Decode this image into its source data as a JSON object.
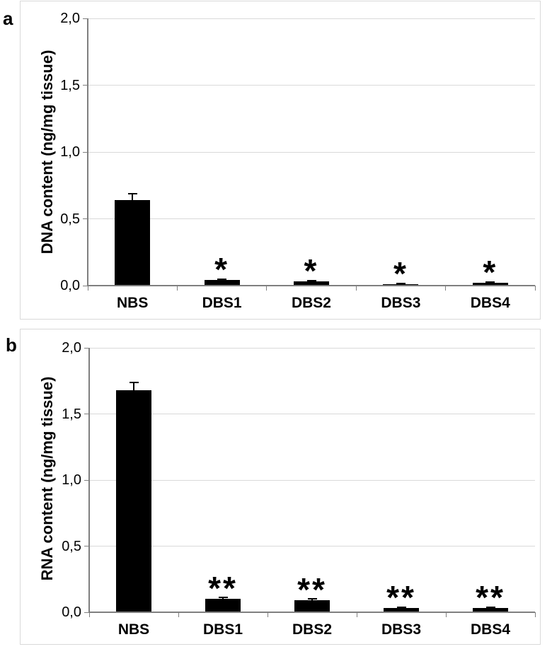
{
  "figure_type": "two-panel bar chart figure",
  "style": {
    "bar_color": "#000000",
    "grid_color": "#d9d9d9",
    "axis_color": "#7f7f7f",
    "border_color": "#d9d9d9",
    "text_color": "#000000",
    "background": "#ffffff"
  },
  "chart_data": [
    {
      "type": "bar",
      "panel_label": "a",
      "title": "",
      "xlabel": "",
      "ylabel": "DNA content (ng/mg tissue)",
      "categories": [
        "NBS",
        "DBS1",
        "DBS2",
        "DBS3",
        "DBS4"
      ],
      "values": [
        0.64,
        0.04,
        0.03,
        0.01,
        0.02
      ],
      "errors": [
        0.05,
        0.01,
        0.008,
        0.005,
        0.006
      ],
      "significance": [
        "",
        "*",
        "*",
        "*",
        "*"
      ],
      "ylim": [
        0,
        2
      ],
      "ytick_values": [
        0,
        0.5,
        1.0,
        1.5,
        2.0
      ],
      "ytick_labels": [
        "0,0",
        "0,5",
        "1,0",
        "1,5",
        "2,0"
      ],
      "grid": true,
      "legend": "none"
    },
    {
      "type": "bar",
      "panel_label": "b",
      "title": "",
      "xlabel": "",
      "ylabel": "RNA content (ng/mg tissue)",
      "categories": [
        "NBS",
        "DBS1",
        "DBS2",
        "DBS3",
        "DBS4"
      ],
      "values": [
        1.68,
        0.1,
        0.09,
        0.03,
        0.03
      ],
      "errors": [
        0.06,
        0.012,
        0.01,
        0.008,
        0.008
      ],
      "significance": [
        "",
        "**",
        "**",
        "**",
        "**"
      ],
      "ylim": [
        0,
        2
      ],
      "ytick_values": [
        0,
        0.5,
        1.0,
        1.5,
        2.0
      ],
      "ytick_labels": [
        "0,0",
        "0,5",
        "1,0",
        "1,5",
        "2,0"
      ],
      "grid": true,
      "legend": "none"
    }
  ]
}
